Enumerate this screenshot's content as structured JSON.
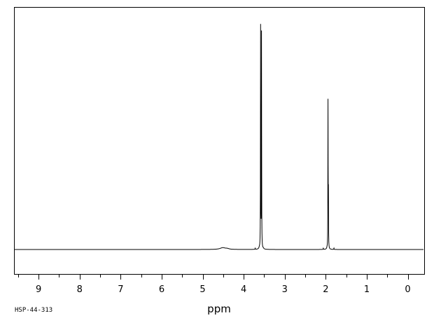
{
  "chart_data": {
    "type": "line",
    "title": "",
    "xlabel": "ppm",
    "ylabel": "",
    "xlim": [
      9.6,
      -0.4
    ],
    "ylim": [
      -12,
      100
    ],
    "x_axis_reversed": true,
    "grid": false,
    "legend": "none",
    "tick_labels": [
      "9",
      "8",
      "7",
      "6",
      "5",
      "4",
      "3",
      "2",
      "1",
      "0"
    ],
    "tick_values": [
      9,
      8,
      7,
      6,
      5,
      4,
      3,
      2,
      1,
      0
    ],
    "minor_tick_step": 0.5,
    "sample_id": "HSP-44-313",
    "peaks": [
      {
        "ppm": 4.51,
        "height": 0.8,
        "width": 0.08
      },
      {
        "ppm": 4.4,
        "height": 0.3,
        "width": 0.05
      },
      {
        "ppm": 3.588,
        "height": 100,
        "width": 0.003
      },
      {
        "ppm": 3.566,
        "height": 97,
        "width": 0.003
      },
      {
        "ppm": 3.62,
        "height": 0.4,
        "width": 0.01
      },
      {
        "ppm": 3.52,
        "height": 0.3,
        "width": 0.01
      },
      {
        "ppm": 3.72,
        "height": 0.5,
        "width": 0.004
      },
      {
        "ppm": 1.945,
        "height": 66,
        "width": 0.003
      },
      {
        "ppm": 1.935,
        "height": 24,
        "width": 0.003
      },
      {
        "ppm": 2.06,
        "height": 0.5,
        "width": 0.004
      },
      {
        "ppm": 1.8,
        "height": 0.6,
        "width": 0.004
      },
      {
        "ppm": 1.97,
        "height": 0.4,
        "width": 0.006
      }
    ]
  }
}
